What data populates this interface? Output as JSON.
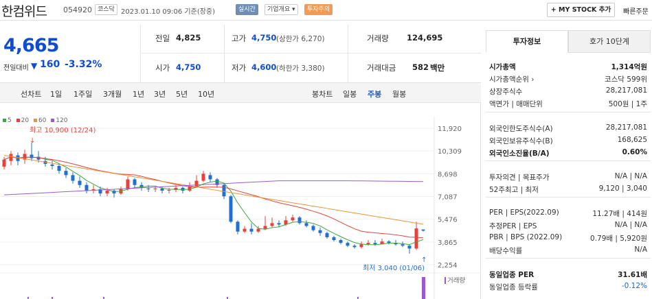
{
  "header": {
    "name": "한컴위드",
    "code": "054920",
    "market": "코스닥",
    "datetime": "2023.01.10 09:06 기준(장중)",
    "badges": {
      "live": "실시간",
      "company": "기업개요 ▾",
      "warning": "투자주의"
    },
    "mystock_label": "+ MY STOCK 추가",
    "quick_order": "빠른주문"
  },
  "price": {
    "current": "4,665",
    "change_label": "전일대비",
    "change_icon": "down-triangle-icon",
    "change": "160",
    "rate": "-3.32%"
  },
  "stats": {
    "prev_close": {
      "label": "전일",
      "value": "4,825"
    },
    "open": {
      "label": "시가",
      "value": "4,750"
    },
    "high": {
      "label": "고가",
      "value": "4,750",
      "sub": "(상한가 6,270)"
    },
    "low": {
      "label": "저가",
      "value": "4,600",
      "sub": "(하한가 3,380)"
    },
    "volume": {
      "label": "거래량",
      "value": "124,695"
    },
    "amount": {
      "label": "거래대금",
      "value": "582",
      "unit": "백만"
    }
  },
  "period_bar": {
    "line_label": "선차트",
    "line_periods": [
      "1일",
      "1주일",
      "3개월",
      "1년",
      "3년",
      "5년",
      "10년"
    ],
    "candle_label": "봉차트",
    "candle_periods": [
      "일봉",
      "주봉",
      "월봉"
    ],
    "active_candle": "주봉"
  },
  "chart_data": {
    "type": "candlestick",
    "period": "weekly",
    "moving_averages": [
      {
        "name": "5",
        "color": "#3aa83a"
      },
      {
        "name": "20",
        "color": "#e8413c"
      },
      {
        "name": "60",
        "color": "#f2922e"
      },
      {
        "name": "120",
        "color": "#9b59d0"
      }
    ],
    "y_ticks": [
      11920,
      10309,
      8698,
      7087,
      5476,
      3865,
      2254
    ],
    "ylim": [
      2254,
      11920
    ],
    "high_marker": {
      "label": "최고 10,900 (12/24)",
      "value": 10900
    },
    "low_marker": {
      "label": "최저 3,040 (01/06)",
      "value": 3040
    },
    "volume_label": "거래량",
    "colors": {
      "up": "#e8413c",
      "down": "#1f6fd6"
    }
  },
  "right_panel": {
    "tabs": [
      "투자정보",
      "호가 10단계"
    ],
    "active_tab": "투자정보",
    "rows": [
      {
        "k": "시가총액",
        "v": "1,314억원",
        "bold": true
      },
      {
        "k": "시가총액순위 ›",
        "v": "코스닥 599위"
      },
      {
        "k": "상장주식수",
        "v": "28,217,081"
      },
      {
        "k": "액면가 | 매매단위",
        "v": "500원 | 1주"
      },
      {
        "k": "외국인한도주식수(A)",
        "v": "28,217,081"
      },
      {
        "k": "외국인보유주식수(B)",
        "v": "168,625"
      },
      {
        "k": "외국인소진율(B/A)",
        "v": "0.60%",
        "bold": true
      },
      {
        "k": "투자의견 | 목표주가",
        "v": "N/A | N/A"
      },
      {
        "k": "52주최고 | 최저",
        "v": "9,120 | 3,040"
      },
      {
        "k": "PER | EPS(2022.09)",
        "v": "11.27배 | 414원"
      },
      {
        "k": "추정PER | EPS",
        "v": "N/A | N/A"
      },
      {
        "k": "PBR | BPS (2022.09)",
        "v": "0.79배 | 5,920원"
      },
      {
        "k": "배당수익률",
        "v": "N/A"
      },
      {
        "k": "동일업종 PER",
        "v": "31.61배",
        "bold": true
      },
      {
        "k": "동일업종 등락률",
        "v": "-0.12%",
        "neg": true
      }
    ]
  }
}
